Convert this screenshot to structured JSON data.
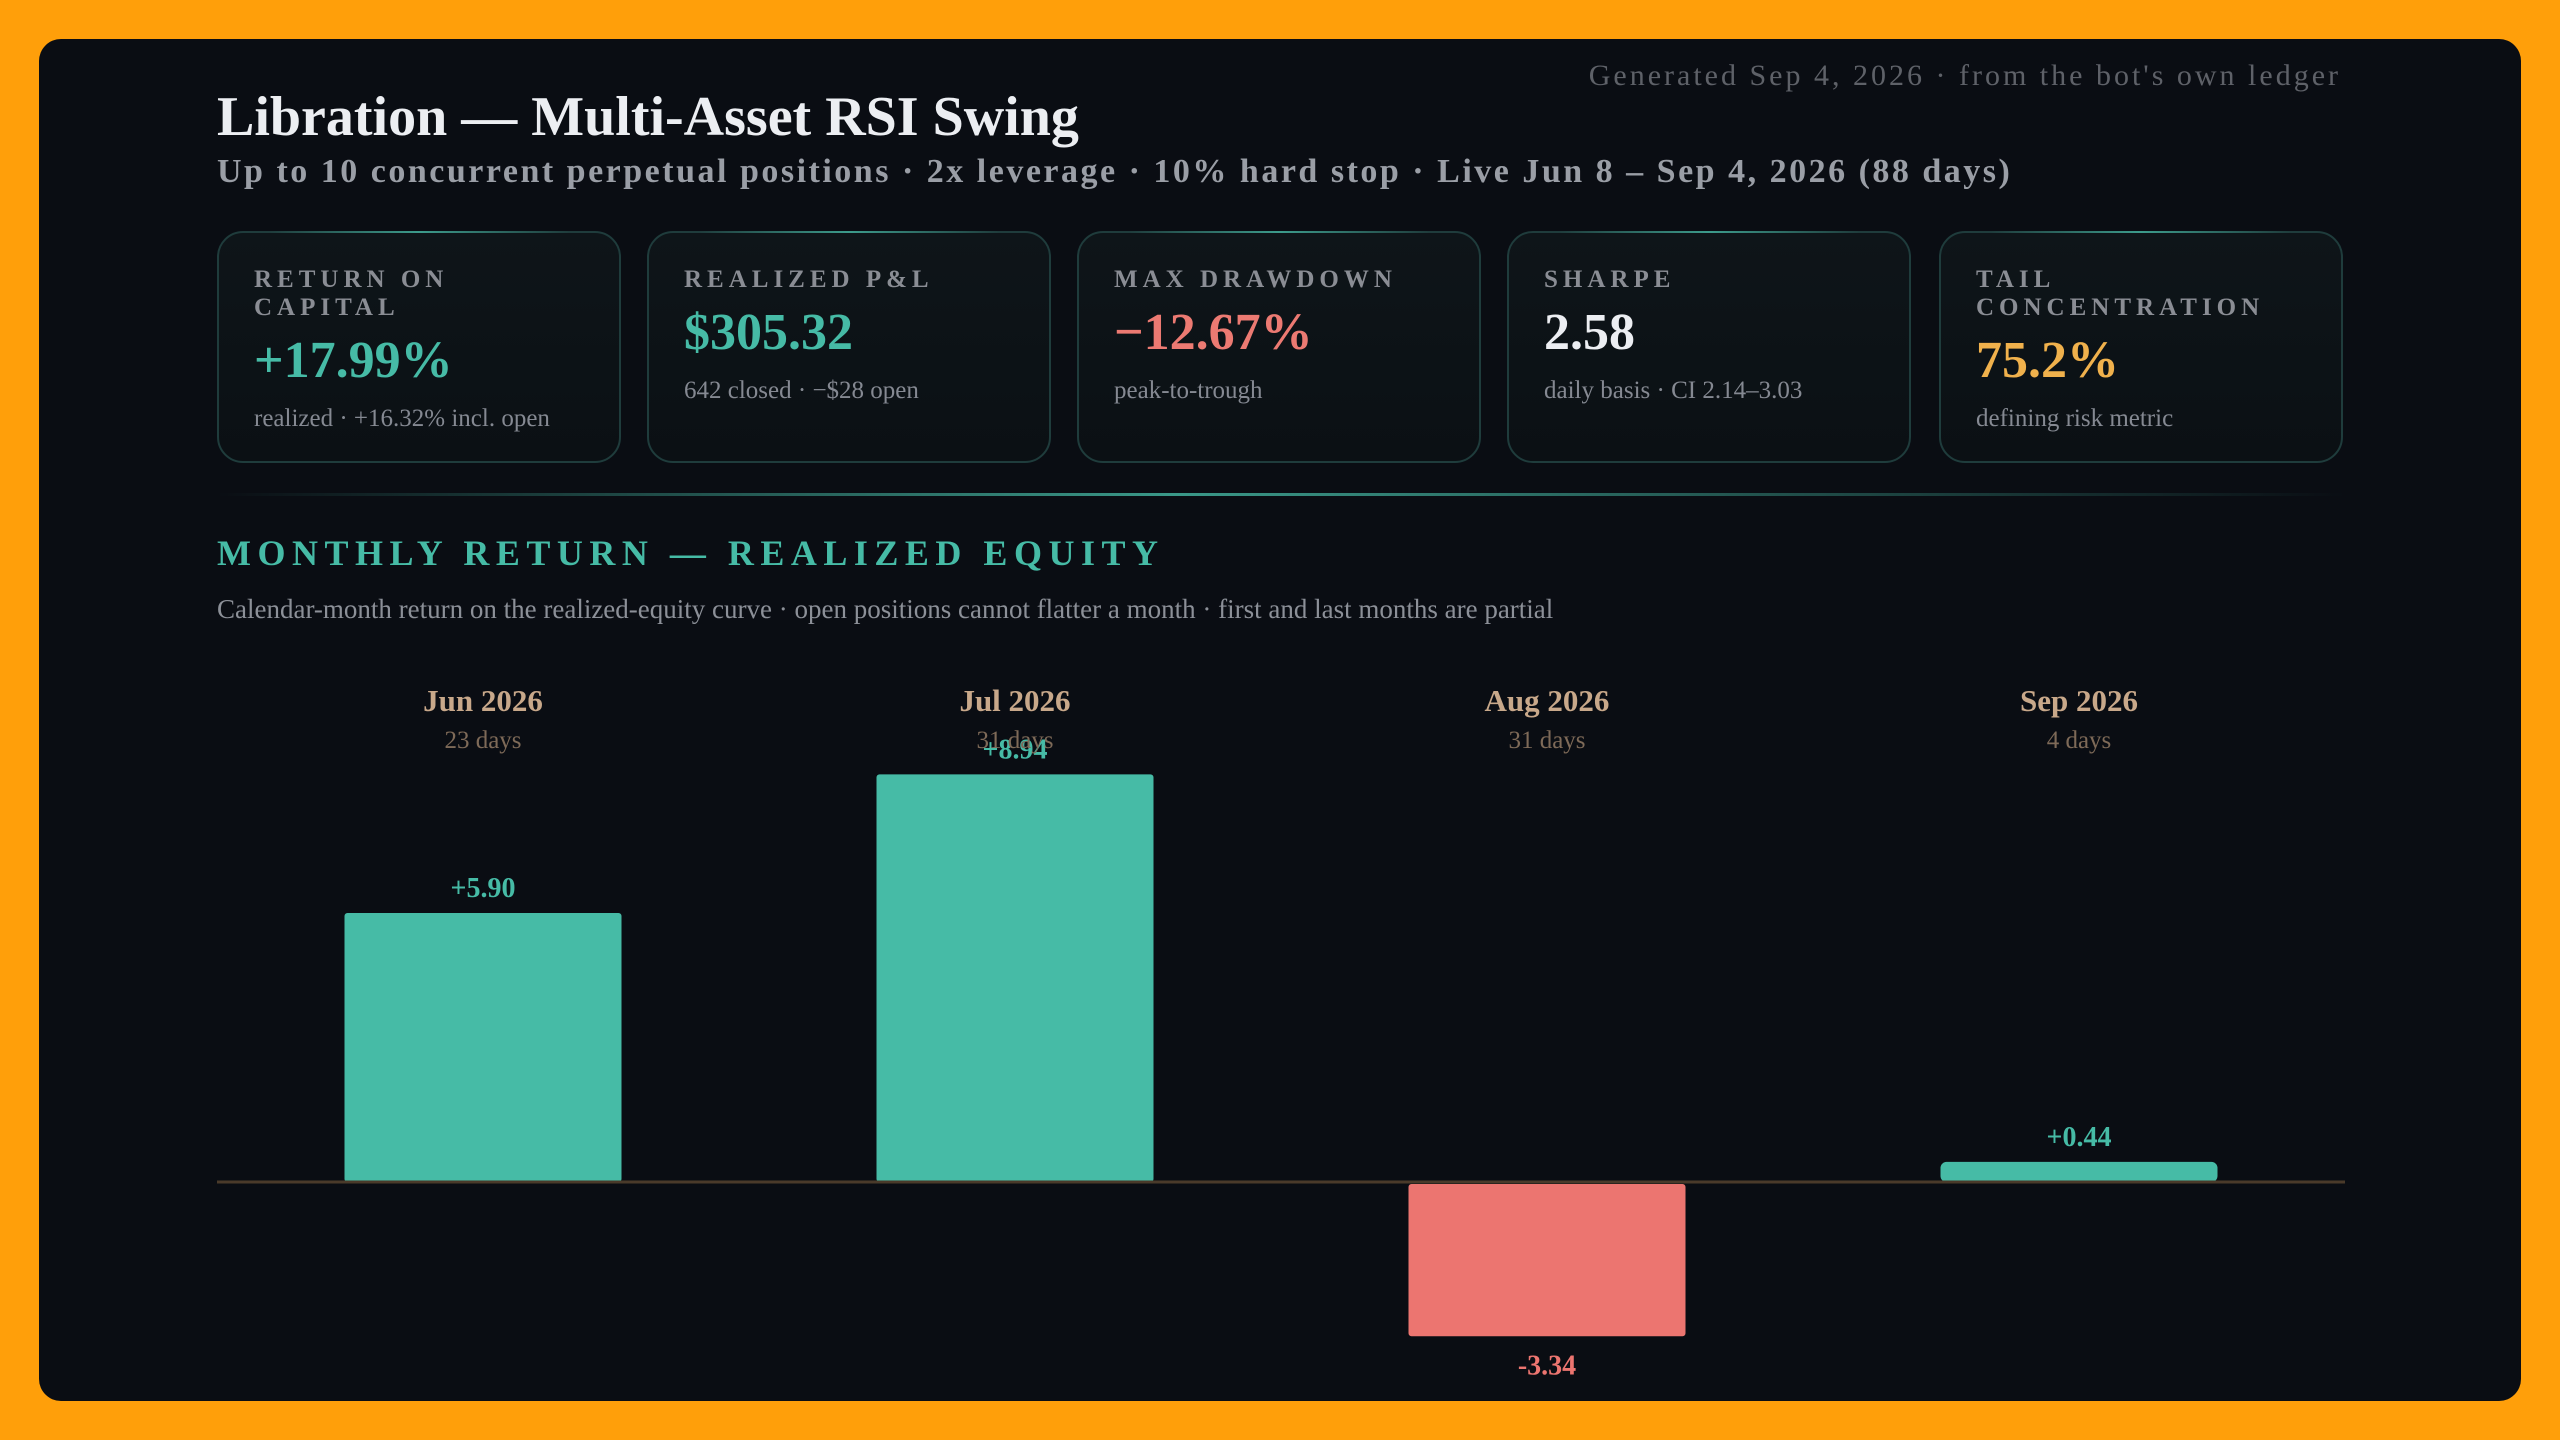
{
  "generated_text": "Generated Sep 4, 2026 · from the bot's own ledger",
  "title": "Libration — Multi-Asset RSI Swing",
  "subtitle": "Up to 10 concurrent perpetual positions · 2x leverage · 10% hard stop · Live Jun 8 – Sep 4, 2026 (88 days)",
  "kpis": [
    {
      "label": "RETURN ON CAPITAL",
      "value": "+17.99%",
      "note": "realized · +16.32% incl. open",
      "color": "#46bba6"
    },
    {
      "label": "REALIZED P&L",
      "value": "$305.32",
      "note": "642 closed · −$28 open",
      "color": "#46bba6"
    },
    {
      "label": "MAX DRAWDOWN",
      "value": "−12.67%",
      "note": "peak-to-trough",
      "color": "#ec7a72"
    },
    {
      "label": "SHARPE",
      "value": "2.58",
      "note": "daily basis · CI 2.14–3.03",
      "color": "#eceef2"
    },
    {
      "label": "TAIL CONCENTRATION",
      "value": "75.2%",
      "note": "defining risk metric",
      "color": "#f0b14c"
    }
  ],
  "section": {
    "title": "MONTHLY RETURN — REALIZED EQUITY",
    "description": "Calendar-month return on the realized-equity curve · open positions cannot flatter a month · first and last months are partial"
  },
  "chart_data": {
    "type": "bar",
    "categories": [
      "Jun 2026",
      "Jul 2026",
      "Aug 2026",
      "Sep 2026"
    ],
    "sublabels": [
      "23 days",
      "31 days",
      "31 days",
      "4 days"
    ],
    "values": [
      5.9,
      8.94,
      -3.34,
      0.44
    ],
    "value_labels": [
      "+5.90",
      "+8.94",
      "-3.34",
      "+0.44"
    ],
    "positive_color": "#46bba6",
    "negative_color": "#ec7570",
    "category_label_color": "#c8a88a",
    "sublabel_color": "#7e6a58",
    "baseline_color": "#4a3a2a",
    "grid": false
  }
}
